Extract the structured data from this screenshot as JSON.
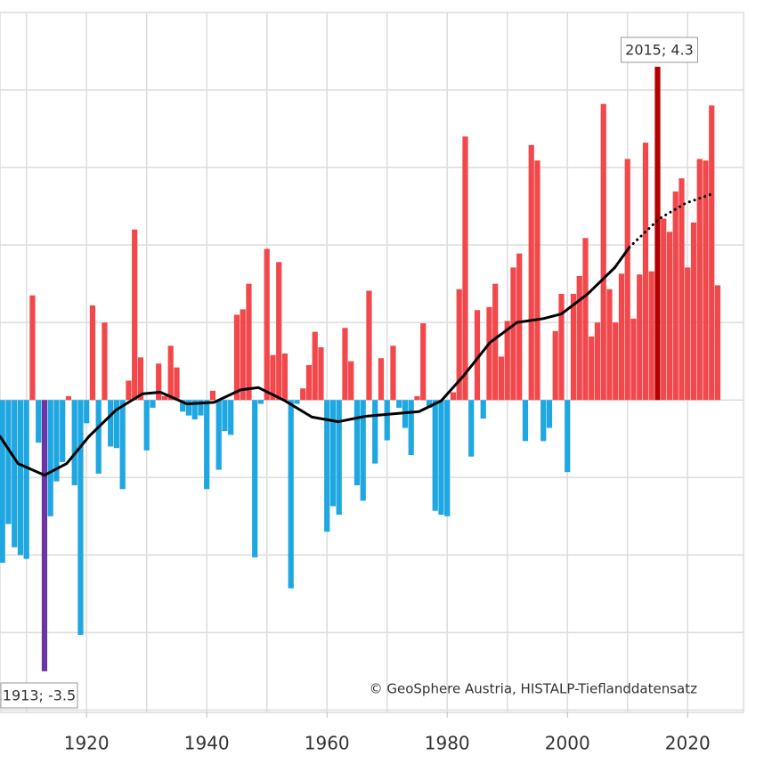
{
  "chart_data": {
    "type": "bar",
    "x": [
      1906,
      1907,
      1908,
      1909,
      1910,
      1911,
      1912,
      1913,
      1914,
      1915,
      1916,
      1917,
      1918,
      1919,
      1920,
      1921,
      1922,
      1923,
      1924,
      1925,
      1926,
      1927,
      1928,
      1929,
      1930,
      1931,
      1932,
      1933,
      1934,
      1935,
      1936,
      1937,
      1938,
      1939,
      1940,
      1941,
      1942,
      1943,
      1944,
      1945,
      1946,
      1947,
      1948,
      1949,
      1950,
      1951,
      1952,
      1953,
      1954,
      1955,
      1956,
      1957,
      1958,
      1959,
      1960,
      1961,
      1962,
      1963,
      1964,
      1965,
      1966,
      1967,
      1968,
      1969,
      1970,
      1971,
      1972,
      1973,
      1974,
      1975,
      1976,
      1977,
      1978,
      1979,
      1980,
      1981,
      1982,
      1983,
      1984,
      1985,
      1986,
      1987,
      1988,
      1989,
      1990,
      1991,
      1992,
      1993,
      1994,
      1995,
      1996,
      1997,
      1998,
      1999,
      2000,
      2001,
      2002,
      2003,
      2004,
      2005,
      2006,
      2007,
      2008,
      2009,
      2010,
      2011,
      2012,
      2013,
      2014,
      2015,
      2016,
      2017,
      2018,
      2019,
      2020,
      2021,
      2022,
      2023,
      2024,
      2025
    ],
    "values": [
      -2.1,
      -1.6,
      -1.9,
      -2.0,
      -2.05,
      1.35,
      -0.55,
      -3.5,
      -1.5,
      -1.05,
      -0.8,
      0.05,
      -1.1,
      -3.03,
      -0.3,
      1.22,
      -0.95,
      1.0,
      -0.6,
      -0.62,
      -1.15,
      0.25,
      2.2,
      0.55,
      -0.65,
      -0.1,
      0.47,
      0.05,
      0.7,
      0.42,
      -0.15,
      -0.2,
      -0.25,
      -0.2,
      -1.15,
      0.12,
      -0.9,
      -0.4,
      -0.45,
      1.1,
      1.17,
      1.5,
      -2.03,
      -0.05,
      1.95,
      0.58,
      1.78,
      0.6,
      -2.43,
      -0.05,
      0.15,
      0.45,
      0.88,
      0.68,
      -1.7,
      -1.37,
      -1.48,
      0.93,
      0.5,
      -1.1,
      -1.3,
      1.41,
      -0.82,
      0.54,
      -0.52,
      0.7,
      -0.1,
      -0.36,
      -0.71,
      0.05,
      0.99,
      -0.1,
      -1.43,
      -1.48,
      -1.5,
      0.1,
      1.43,
      3.4,
      -0.73,
      1.16,
      -0.24,
      1.2,
      1.5,
      0.56,
      1.02,
      1.71,
      1.89,
      -0.53,
      3.29,
      3.09,
      -0.53,
      -0.36,
      0.89,
      1.37,
      -0.93,
      1.37,
      1.6,
      2.09,
      0.82,
      1.0,
      3.82,
      1.43,
      1.0,
      1.63,
      3.11,
      1.05,
      1.62,
      3.32,
      1.66,
      4.3,
      2.34,
      2.17,
      2.69,
      2.86,
      1.71,
      2.29,
      3.11,
      3.09,
      3.8,
      1.48
    ],
    "positive_color": "#f2484b",
    "negative_color": "#1fa7e1",
    "highlights": [
      {
        "x": 1913,
        "color": "#6b35a6",
        "label": "1913; -3.5"
      },
      {
        "x": 2015,
        "color": "#b30000",
        "label": "2015; 4.3"
      }
    ],
    "lines": [
      {
        "x": [
          1905.6,
          1908.6,
          1913.0,
          1916.7,
          1920.4,
          1924.9,
          1929.3,
          1932.3,
          1936.7,
          1941.2,
          1945.6,
          1948.6,
          1953.0,
          1957.5,
          1961.9,
          1966.4,
          1970.8,
          1975.3,
          1979.0,
          1982.7,
          1987.1,
          1991.6,
          1996.0,
          1999.0,
          2003.4,
          2007.9,
          2010.3
        ],
        "values": [
          -0.47,
          -0.82,
          -0.97,
          -0.82,
          -0.47,
          -0.13,
          0.08,
          0.1,
          -0.05,
          -0.03,
          0.13,
          0.16,
          -0.01,
          -0.22,
          -0.28,
          -0.21,
          -0.18,
          -0.15,
          -0.01,
          0.31,
          0.74,
          1.0,
          1.05,
          1.11,
          1.37,
          1.71,
          1.97
        ],
        "color": "#000000",
        "dashed": false
      },
      {
        "x": [
          2010.3,
          2015.3,
          2019.7,
          2024.1
        ],
        "values": [
          1.97,
          2.34,
          2.54,
          2.66
        ],
        "color": "#000000",
        "dashed": true
      }
    ],
    "xlim": [
      1905.6,
      2029.3
    ],
    "xticks": [
      1920,
      1940,
      1960,
      1980,
      2000,
      2020
    ],
    "xgrid": [
      1910,
      1930,
      1950,
      1970,
      1990,
      2010
    ],
    "ylim": [
      -4.03,
      5
    ],
    "yticks": [
      -4,
      -3,
      -2,
      -1,
      0,
      1,
      2,
      3,
      4
    ],
    "grid": true,
    "credit": "© GeoSphere Austria, HISTALP-Tieflanddatensatz"
  }
}
